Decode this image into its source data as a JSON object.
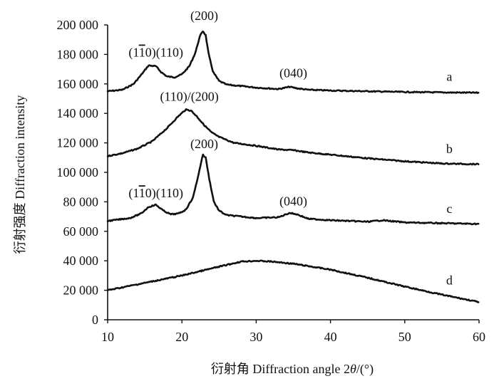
{
  "chart_data": {
    "type": "line",
    "title": "",
    "xlabel": "衍射角 Diffraction angle 2θ/(°)",
    "xlabel_parts": {
      "prefix": "衍射角 Diffraction angle 2",
      "theta": "θ",
      "suffix": "/(°)"
    },
    "ylabel": "衍射强度 Diffraction intensity",
    "xlim": [
      10,
      60
    ],
    "ylim": [
      0,
      200000
    ],
    "x_ticks": [
      {
        "value": 10,
        "label": "10"
      },
      {
        "value": 20,
        "label": "20"
      },
      {
        "value": 30,
        "label": "30"
      },
      {
        "value": 40,
        "label": "40"
      },
      {
        "value": 50,
        "label": "50"
      },
      {
        "value": 60,
        "label": "60"
      }
    ],
    "y_ticks": [
      {
        "value": 0,
        "label": "0"
      },
      {
        "value": 20000,
        "label": "20 000"
      },
      {
        "value": 40000,
        "label": "40 000"
      },
      {
        "value": 60000,
        "label": "60 000"
      },
      {
        "value": 80000,
        "label": "80 000"
      },
      {
        "value": 100000,
        "label": "100 000"
      },
      {
        "value": 120000,
        "label": "120 000"
      },
      {
        "value": 140000,
        "label": "140 000"
      },
      {
        "value": 160000,
        "label": "160 000"
      },
      {
        "value": 180000,
        "label": "180 000"
      },
      {
        "value": 200000,
        "label": "200 000"
      }
    ],
    "series": [
      {
        "name": "a",
        "x": [
          10,
          12,
          13.5,
          14.5,
          15.5,
          16.5,
          17.2,
          18,
          19,
          20,
          21,
          21.8,
          22.4,
          22.8,
          23.2,
          23.6,
          24.2,
          25,
          26,
          28,
          30,
          33,
          34.5,
          35.5,
          37,
          40,
          45,
          50,
          55,
          60
        ],
        "y": [
          155000,
          156000,
          160000,
          166000,
          172500,
          172000,
          168000,
          165000,
          164500,
          166500,
          172000,
          181000,
          192000,
          196000,
          193000,
          180000,
          168000,
          162000,
          159500,
          158500,
          157500,
          156500,
          158000,
          157000,
          156000,
          155500,
          155000,
          154500,
          154200,
          154000
        ]
      },
      {
        "name": "b",
        "x": [
          10,
          12,
          14,
          16,
          18,
          19.5,
          20.5,
          21.2,
          22,
          23,
          24,
          25,
          27,
          30,
          33,
          35,
          37,
          40,
          45,
          50,
          55,
          60
        ],
        "y": [
          111000,
          113000,
          116000,
          121000,
          130000,
          138000,
          142500,
          142000,
          138000,
          132000,
          127000,
          124000,
          120000,
          118000,
          115500,
          115000,
          113500,
          112000,
          109500,
          107500,
          106000,
          105500
        ]
      },
      {
        "name": "c",
        "x": [
          10,
          13,
          14.5,
          15.5,
          16.5,
          17.5,
          18.5,
          19.5,
          20.5,
          21.5,
          22.3,
          22.8,
          23.2,
          23.7,
          24.3,
          25,
          26,
          28,
          30,
          33,
          34.5,
          35.5,
          37,
          40,
          45,
          47,
          50,
          55,
          60
        ],
        "y": [
          67000,
          69000,
          72000,
          76500,
          78000,
          74000,
          71500,
          72000,
          74500,
          83000,
          100000,
          112000,
          110000,
          95000,
          80000,
          74000,
          71000,
          70000,
          69000,
          69500,
          72500,
          71500,
          68500,
          67500,
          66500,
          67500,
          66000,
          65500,
          65000
        ]
      },
      {
        "name": "d",
        "x": [
          10,
          15,
          20,
          25,
          28,
          30,
          32,
          35,
          40,
          45,
          50,
          55,
          58,
          60
        ],
        "y": [
          20000,
          25000,
          30000,
          36000,
          39500,
          40000,
          39500,
          38000,
          34000,
          28500,
          22500,
          17000,
          14000,
          12000
        ]
      }
    ],
    "series_labels": [
      {
        "text": "a",
        "x": 56,
        "y": 162000
      },
      {
        "text": "b",
        "x": 56,
        "y": 113000
      },
      {
        "text": "c",
        "x": 56,
        "y": 72500
      },
      {
        "text": "d",
        "x": 56,
        "y": 24000
      }
    ],
    "annotations": [
      {
        "parts": [
          "(1",
          "1",
          "0)(110)"
        ],
        "overlined": 1,
        "x": 16.5,
        "y": 178500
      },
      {
        "parts": [
          "(200)"
        ],
        "overlined": -1,
        "x": 23,
        "y": 203500
      },
      {
        "parts": [
          "(040)"
        ],
        "overlined": -1,
        "x": 35,
        "y": 164500
      },
      {
        "parts": [
          "(110)/(200)"
        ],
        "overlined": -1,
        "x": 21,
        "y": 148500
      },
      {
        "parts": [
          "(200)"
        ],
        "overlined": -1,
        "x": 23,
        "y": 116500
      },
      {
        "parts": [
          "(1",
          "1",
          "0)(110)"
        ],
        "overlined": 1,
        "x": 16.5,
        "y": 83000
      },
      {
        "parts": [
          "(040)"
        ],
        "overlined": -1,
        "x": 35,
        "y": 77500
      }
    ]
  }
}
